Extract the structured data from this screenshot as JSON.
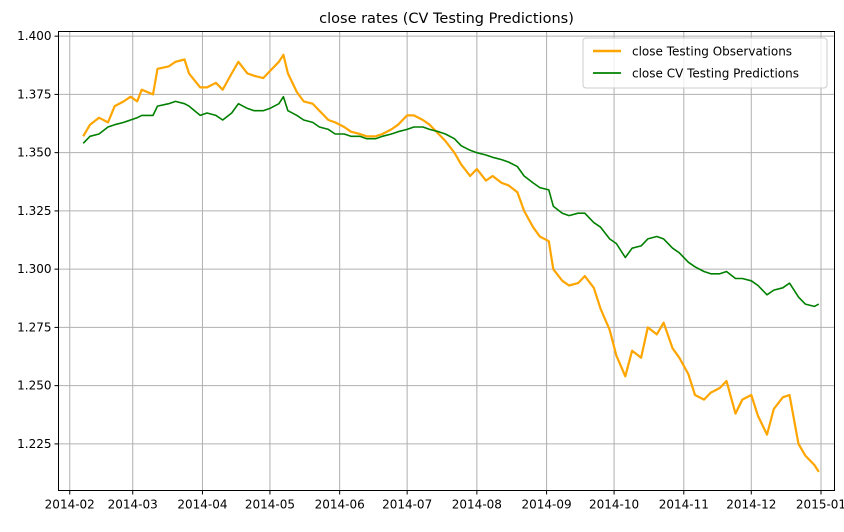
{
  "chart_data": {
    "type": "line",
    "title": "close rates (CV Testing Predictions)",
    "xlabel": "",
    "ylabel": "",
    "x_range": [
      "2014-01-27",
      "2015-01-07"
    ],
    "ylim": [
      1.205,
      1.402
    ],
    "x_ticks": [
      "2014-02",
      "2014-03",
      "2014-04",
      "2014-05",
      "2014-06",
      "2014-07",
      "2014-08",
      "2014-09",
      "2014-10",
      "2014-11",
      "2014-12",
      "2015-01"
    ],
    "y_ticks": [
      "1.225",
      "1.250",
      "1.275",
      "1.300",
      "1.325",
      "1.350",
      "1.375",
      "1.400"
    ],
    "grid": true,
    "legend_position": "top-right",
    "series": [
      {
        "name": "close Testing Observations",
        "color": "#ffa500",
        "points": [
          [
            "2014-02-07",
            1.357
          ],
          [
            "2014-02-10",
            1.362
          ],
          [
            "2014-02-14",
            1.365
          ],
          [
            "2014-02-18",
            1.363
          ],
          [
            "2014-02-21",
            1.37
          ],
          [
            "2014-02-25",
            1.372
          ],
          [
            "2014-02-28",
            1.374
          ],
          [
            "2014-03-03",
            1.372
          ],
          [
            "2014-03-05",
            1.377
          ],
          [
            "2014-03-10",
            1.375
          ],
          [
            "2014-03-12",
            1.386
          ],
          [
            "2014-03-17",
            1.387
          ],
          [
            "2014-03-20",
            1.389
          ],
          [
            "2014-03-24",
            1.39
          ],
          [
            "2014-03-26",
            1.384
          ],
          [
            "2014-03-31",
            1.378
          ],
          [
            "2014-04-03",
            1.378
          ],
          [
            "2014-04-07",
            1.38
          ],
          [
            "2014-04-10",
            1.377
          ],
          [
            "2014-04-14",
            1.384
          ],
          [
            "2014-04-17",
            1.389
          ],
          [
            "2014-04-21",
            1.384
          ],
          [
            "2014-04-24",
            1.383
          ],
          [
            "2014-04-28",
            1.382
          ],
          [
            "2014-05-01",
            1.385
          ],
          [
            "2014-05-05",
            1.389
          ],
          [
            "2014-05-07",
            1.392
          ],
          [
            "2014-05-09",
            1.384
          ],
          [
            "2014-05-13",
            1.376
          ],
          [
            "2014-05-16",
            1.372
          ],
          [
            "2014-05-20",
            1.371
          ],
          [
            "2014-05-23",
            1.368
          ],
          [
            "2014-05-27",
            1.364
          ],
          [
            "2014-05-30",
            1.363
          ],
          [
            "2014-06-03",
            1.361
          ],
          [
            "2014-06-06",
            1.359
          ],
          [
            "2014-06-10",
            1.358
          ],
          [
            "2014-06-13",
            1.357
          ],
          [
            "2014-06-17",
            1.357
          ],
          [
            "2014-06-20",
            1.358
          ],
          [
            "2014-06-24",
            1.36
          ],
          [
            "2014-06-27",
            1.362
          ],
          [
            "2014-07-01",
            1.366
          ],
          [
            "2014-07-04",
            1.366
          ],
          [
            "2014-07-08",
            1.364
          ],
          [
            "2014-07-11",
            1.362
          ],
          [
            "2014-07-15",
            1.358
          ],
          [
            "2014-07-18",
            1.355
          ],
          [
            "2014-07-22",
            1.35
          ],
          [
            "2014-07-25",
            1.345
          ],
          [
            "2014-07-29",
            1.34
          ],
          [
            "2014-08-01",
            1.343
          ],
          [
            "2014-08-05",
            1.338
          ],
          [
            "2014-08-08",
            1.34
          ],
          [
            "2014-08-12",
            1.337
          ],
          [
            "2014-08-15",
            1.336
          ],
          [
            "2014-08-19",
            1.333
          ],
          [
            "2014-08-22",
            1.325
          ],
          [
            "2014-08-26",
            1.318
          ],
          [
            "2014-08-29",
            1.314
          ],
          [
            "2014-09-02",
            1.312
          ],
          [
            "2014-09-04",
            1.3
          ],
          [
            "2014-09-08",
            1.295
          ],
          [
            "2014-09-11",
            1.293
          ],
          [
            "2014-09-15",
            1.294
          ],
          [
            "2014-09-18",
            1.297
          ],
          [
            "2014-09-22",
            1.292
          ],
          [
            "2014-09-25",
            1.283
          ],
          [
            "2014-09-29",
            1.274
          ],
          [
            "2014-10-02",
            1.263
          ],
          [
            "2014-10-06",
            1.254
          ],
          [
            "2014-10-09",
            1.265
          ],
          [
            "2014-10-13",
            1.262
          ],
          [
            "2014-10-16",
            1.275
          ],
          [
            "2014-10-20",
            1.272
          ],
          [
            "2014-10-23",
            1.277
          ],
          [
            "2014-10-27",
            1.266
          ],
          [
            "2014-10-30",
            1.262
          ],
          [
            "2014-11-03",
            1.255
          ],
          [
            "2014-11-06",
            1.246
          ],
          [
            "2014-11-10",
            1.244
          ],
          [
            "2014-11-13",
            1.247
          ],
          [
            "2014-11-17",
            1.249
          ],
          [
            "2014-11-20",
            1.252
          ],
          [
            "2014-11-24",
            1.238
          ],
          [
            "2014-11-27",
            1.244
          ],
          [
            "2014-12-01",
            1.246
          ],
          [
            "2014-12-04",
            1.237
          ],
          [
            "2014-12-08",
            1.229
          ],
          [
            "2014-12-11",
            1.24
          ],
          [
            "2014-12-15",
            1.245
          ],
          [
            "2014-12-18",
            1.246
          ],
          [
            "2014-12-22",
            1.225
          ],
          [
            "2014-12-25",
            1.22
          ],
          [
            "2014-12-29",
            1.216
          ],
          [
            "2014-12-31",
            1.213
          ]
        ]
      },
      {
        "name": "close CV Testing Predictions",
        "color": "#008000",
        "points": [
          [
            "2014-02-07",
            1.354
          ],
          [
            "2014-02-10",
            1.357
          ],
          [
            "2014-02-14",
            1.358
          ],
          [
            "2014-02-18",
            1.361
          ],
          [
            "2014-02-21",
            1.362
          ],
          [
            "2014-02-25",
            1.363
          ],
          [
            "2014-02-28",
            1.364
          ],
          [
            "2014-03-03",
            1.365
          ],
          [
            "2014-03-05",
            1.366
          ],
          [
            "2014-03-10",
            1.366
          ],
          [
            "2014-03-12",
            1.37
          ],
          [
            "2014-03-17",
            1.371
          ],
          [
            "2014-03-20",
            1.372
          ],
          [
            "2014-03-24",
            1.371
          ],
          [
            "2014-03-26",
            1.37
          ],
          [
            "2014-03-31",
            1.366
          ],
          [
            "2014-04-03",
            1.367
          ],
          [
            "2014-04-07",
            1.366
          ],
          [
            "2014-04-10",
            1.364
          ],
          [
            "2014-04-14",
            1.367
          ],
          [
            "2014-04-17",
            1.371
          ],
          [
            "2014-04-21",
            1.369
          ],
          [
            "2014-04-24",
            1.368
          ],
          [
            "2014-04-28",
            1.368
          ],
          [
            "2014-05-01",
            1.369
          ],
          [
            "2014-05-05",
            1.371
          ],
          [
            "2014-05-07",
            1.374
          ],
          [
            "2014-05-09",
            1.368
          ],
          [
            "2014-05-13",
            1.366
          ],
          [
            "2014-05-16",
            1.364
          ],
          [
            "2014-05-20",
            1.363
          ],
          [
            "2014-05-23",
            1.361
          ],
          [
            "2014-05-27",
            1.36
          ],
          [
            "2014-05-30",
            1.358
          ],
          [
            "2014-06-03",
            1.358
          ],
          [
            "2014-06-06",
            1.357
          ],
          [
            "2014-06-10",
            1.357
          ],
          [
            "2014-06-13",
            1.356
          ],
          [
            "2014-06-17",
            1.356
          ],
          [
            "2014-06-20",
            1.357
          ],
          [
            "2014-06-24",
            1.358
          ],
          [
            "2014-06-27",
            1.359
          ],
          [
            "2014-07-01",
            1.36
          ],
          [
            "2014-07-04",
            1.361
          ],
          [
            "2014-07-08",
            1.361
          ],
          [
            "2014-07-11",
            1.36
          ],
          [
            "2014-07-15",
            1.359
          ],
          [
            "2014-07-18",
            1.358
          ],
          [
            "2014-07-22",
            1.356
          ],
          [
            "2014-07-25",
            1.353
          ],
          [
            "2014-07-29",
            1.351
          ],
          [
            "2014-08-01",
            1.35
          ],
          [
            "2014-08-05",
            1.349
          ],
          [
            "2014-08-08",
            1.348
          ],
          [
            "2014-08-12",
            1.347
          ],
          [
            "2014-08-15",
            1.346
          ],
          [
            "2014-08-19",
            1.344
          ],
          [
            "2014-08-22",
            1.34
          ],
          [
            "2014-08-26",
            1.337
          ],
          [
            "2014-08-29",
            1.335
          ],
          [
            "2014-09-02",
            1.334
          ],
          [
            "2014-09-04",
            1.327
          ],
          [
            "2014-09-08",
            1.324
          ],
          [
            "2014-09-11",
            1.323
          ],
          [
            "2014-09-15",
            1.324
          ],
          [
            "2014-09-18",
            1.324
          ],
          [
            "2014-09-22",
            1.32
          ],
          [
            "2014-09-25",
            1.318
          ],
          [
            "2014-09-29",
            1.313
          ],
          [
            "2014-10-02",
            1.311
          ],
          [
            "2014-10-06",
            1.305
          ],
          [
            "2014-10-09",
            1.309
          ],
          [
            "2014-10-13",
            1.31
          ],
          [
            "2014-10-16",
            1.313
          ],
          [
            "2014-10-20",
            1.314
          ],
          [
            "2014-10-23",
            1.313
          ],
          [
            "2014-10-27",
            1.309
          ],
          [
            "2014-10-30",
            1.307
          ],
          [
            "2014-11-03",
            1.303
          ],
          [
            "2014-11-06",
            1.301
          ],
          [
            "2014-11-10",
            1.299
          ],
          [
            "2014-11-13",
            1.298
          ],
          [
            "2014-11-17",
            1.298
          ],
          [
            "2014-11-20",
            1.299
          ],
          [
            "2014-11-24",
            1.296
          ],
          [
            "2014-11-27",
            1.296
          ],
          [
            "2014-12-01",
            1.295
          ],
          [
            "2014-12-04",
            1.293
          ],
          [
            "2014-12-08",
            1.289
          ],
          [
            "2014-12-11",
            1.291
          ],
          [
            "2014-12-15",
            1.292
          ],
          [
            "2014-12-18",
            1.294
          ],
          [
            "2014-12-22",
            1.288
          ],
          [
            "2014-12-25",
            1.285
          ],
          [
            "2014-12-29",
            1.284
          ],
          [
            "2014-12-31",
            1.285
          ]
        ]
      }
    ]
  }
}
